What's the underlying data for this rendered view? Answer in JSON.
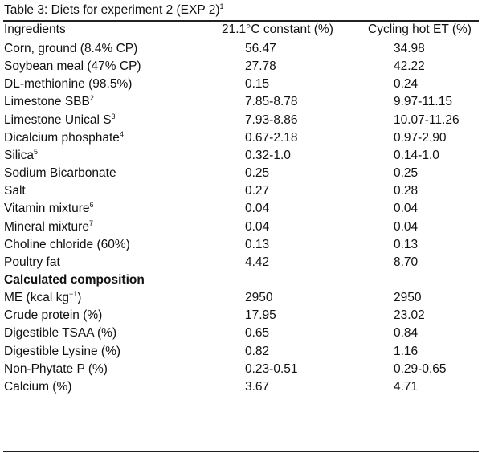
{
  "caption": {
    "text": "Table 3: Diets for experiment 2 (EXP 2)",
    "note": "1"
  },
  "columns": [
    "Ingredients",
    "21.1°C constant (%)",
    "Cycling hot ET (%)"
  ],
  "rows": [
    {
      "name": "Corn, ground (8.4% CP)",
      "sup": "",
      "a": "56.47",
      "b": "34.98"
    },
    {
      "name": "Soybean meal (47% CP)",
      "sup": "",
      "a": "27.78",
      "b": "42.22"
    },
    {
      "name": "DL-methionine (98.5%)",
      "sup": "",
      "a": "0.15",
      "b": "0.24"
    },
    {
      "name": "Limestone SBB",
      "sup": "2",
      "a": "7.85-8.78",
      "b": "9.97-11.15"
    },
    {
      "name": "Limestone Unical S",
      "sup": "3",
      "a": "7.93-8.86",
      "b": "10.07-11.26"
    },
    {
      "name": "Dicalcium phosphate",
      "sup": "4",
      "a": "0.67-2.18",
      "b": "0.97-2.90"
    },
    {
      "name": "Silica",
      "sup": "5",
      "a": "0.32-1.0",
      "b": "0.14-1.0"
    },
    {
      "name": "Sodium Bicarbonate",
      "sup": "",
      "a": "0.25",
      "b": "0.25"
    },
    {
      "name": "Salt",
      "sup": "",
      "a": "0.27",
      "b": "0.28"
    },
    {
      "name": "Vitamin mixture",
      "sup": "6",
      "a": "0.04",
      "b": "0.04"
    },
    {
      "name": "Mineral mixture",
      "sup": "7",
      "a": "0.04",
      "b": "0.04"
    },
    {
      "name": "Choline chloride (60%)",
      "sup": "",
      "a": "0.13",
      "b": "0.13"
    },
    {
      "name": "Poultry fat",
      "sup": "",
      "a": "4.42",
      "b": "8.70"
    }
  ],
  "section_heading": "Calculated composition",
  "composition": [
    {
      "name": "ME (kcal kg",
      "sup": "−1",
      "suffix": ")",
      "a": "2950",
      "b": "2950"
    },
    {
      "name": "Crude protein (%)",
      "sup": "",
      "suffix": "",
      "a": "17.95",
      "b": "23.02"
    },
    {
      "name": "Digestible TSAA (%)",
      "sup": "",
      "suffix": "",
      "a": "0.65",
      "b": "0.84"
    },
    {
      "name": "Digestible Lysine (%)",
      "sup": "",
      "suffix": "",
      "a": "0.82",
      "b": "1.16"
    },
    {
      "name": "Non-Phytate P (%)",
      "sup": "",
      "suffix": "",
      "a": "0.23-0.51",
      "b": "0.29-0.65"
    },
    {
      "name": "Calcium (%)",
      "sup": "",
      "suffix": "",
      "a": "3.67",
      "b": "4.71"
    }
  ]
}
